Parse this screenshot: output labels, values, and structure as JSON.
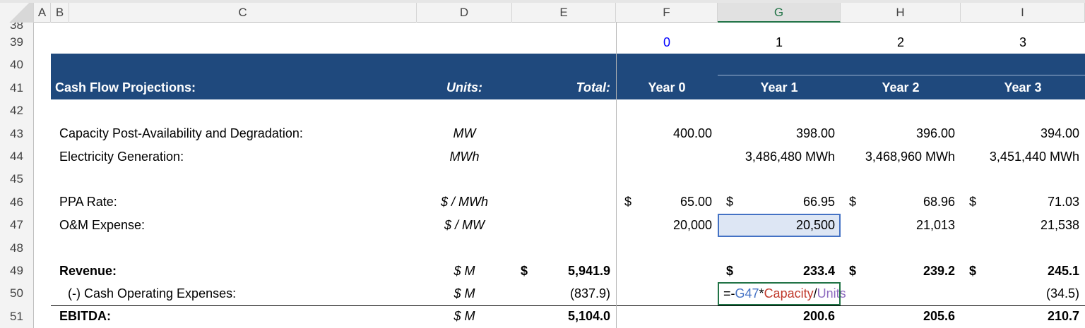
{
  "columns": [
    "A",
    "B",
    "C",
    "D",
    "E",
    "F",
    "G",
    "H",
    "I"
  ],
  "selected_column": "G",
  "row_numbers": [
    "38",
    "39",
    "40",
    "41",
    "42",
    "43",
    "44",
    "45",
    "46",
    "47",
    "48",
    "49",
    "50",
    "51"
  ],
  "year_index": {
    "F": "0",
    "G": "1",
    "H": "2",
    "I": "3"
  },
  "header": {
    "title": "Cash Flow Projections:",
    "units": "Units:",
    "total": "Total:",
    "years": {
      "F": "Year 0",
      "G": "Year 1",
      "H": "Year 2",
      "I": "Year 3"
    }
  },
  "lines": [
    {
      "row": "43",
      "label": "Capacity Post-Availability and Degradation:",
      "units": "MW",
      "total": "",
      "dollar": false,
      "values": {
        "F": "400.00",
        "G": "398.00",
        "H": "396.00",
        "I": "394.00"
      }
    },
    {
      "row": "44",
      "label": "Electricity Generation:",
      "units": "MWh",
      "total": "",
      "dollar": false,
      "values": {
        "F": "",
        "G": "3,486,480 MWh",
        "H": "3,468,960 MWh",
        "I": "3,451,440 MWh"
      }
    },
    {
      "row": "46",
      "label": "PPA Rate:",
      "units": "$ / MWh",
      "total": "",
      "dollar": true,
      "dollar_cols": [
        "F",
        "G",
        "H",
        "I"
      ],
      "values": {
        "F": "65.00",
        "G": "66.95",
        "H": "68.96",
        "I": "71.03"
      }
    },
    {
      "row": "47",
      "label": "O&M Expense:",
      "units": "$ / MW",
      "total": "",
      "dollar": false,
      "values": {
        "F": "20,000",
        "G": "20,500",
        "H": "21,013",
        "I": "21,538"
      }
    },
    {
      "row": "49",
      "label": "Revenue:",
      "units": "$ M",
      "total": "5,941.9",
      "total_dollar": true,
      "bold": true,
      "dollar_cols": [
        "G",
        "H",
        "I"
      ],
      "values": {
        "F": "",
        "G": "233.4",
        "H": "239.2",
        "I": "245.1"
      }
    },
    {
      "row": "50",
      "label": "(-) Cash Operating Expenses:",
      "units": "$ M",
      "total": "(837.9)",
      "values": {
        "F": "",
        "G": "",
        "H": "",
        "I": "(34.5)"
      }
    },
    {
      "row": "51",
      "label": "EBITDA:",
      "units": "$ M",
      "total": "5,104.0",
      "bold": true,
      "values": {
        "F": "",
        "G": "200.6",
        "H": "205.6",
        "I": "210.7"
      }
    }
  ],
  "dollar_sign": "$",
  "formula_edit": {
    "cell": "G50",
    "parts": [
      "=-",
      "G47",
      "*",
      "Capacity",
      "/",
      "Units"
    ]
  },
  "colors": {
    "band": "#1f497d",
    "input_blue": "#0000ff",
    "selection": "#4472c4",
    "edit_border": "#217346"
  }
}
